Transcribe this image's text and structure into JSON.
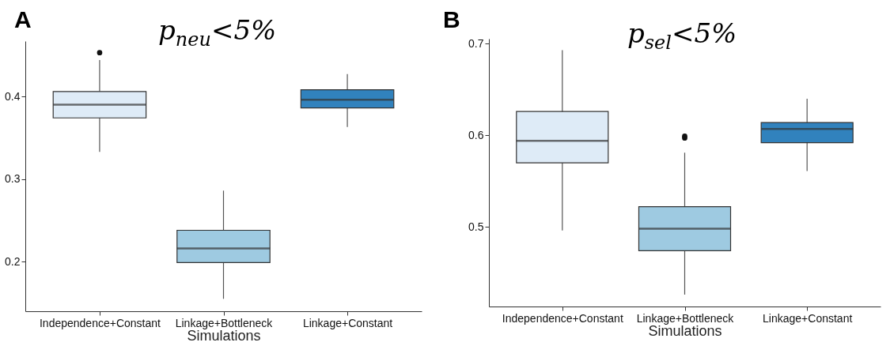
{
  "chart_data": [
    {
      "type": "box",
      "title": "p$_{neu}$<5%",
      "annotations": [
        "A"
      ],
      "xlabel": "Simulations",
      "categories": [
        "Independence+Constant",
        "Linkage+Bottleneck",
        "Linkage+Constant"
      ],
      "colors": [
        "#deebf7",
        "#9ecae1",
        "#3182bd"
      ],
      "ylim": [
        0.14,
        0.467
      ],
      "yticks": [
        0.2,
        0.3,
        0.4
      ],
      "boxes": [
        {
          "low": 0.333,
          "q1": 0.374,
          "median": 0.39,
          "q3": 0.406,
          "high": 0.444,
          "outliers": [
            0.453
          ]
        },
        {
          "low": 0.155,
          "q1": 0.199,
          "median": 0.216,
          "q3": 0.238,
          "high": 0.286
        },
        {
          "low": 0.363,
          "q1": 0.386,
          "median": 0.396,
          "q3": 0.408,
          "high": 0.427
        }
      ]
    },
    {
      "type": "box",
      "title": "p$_{sel}$<5%",
      "annotations": [
        "B"
      ],
      "xlabel": "Simulations",
      "categories": [
        "Independence+Constant",
        "Linkage+Bottleneck",
        "Linkage+Constant"
      ],
      "colors": [
        "#deebf7",
        "#9ecae1",
        "#3182bd"
      ],
      "ylim": [
        0.413,
        0.7055
      ],
      "yticks": [
        0.5,
        0.6,
        0.7
      ],
      "boxes": [
        {
          "low": 0.496,
          "q1": 0.57,
          "median": 0.594,
          "q3": 0.626,
          "high": 0.693
        },
        {
          "low": 0.426,
          "q1": 0.474,
          "median": 0.498,
          "q3": 0.522,
          "high": 0.581,
          "outliers": [
            0.597,
            0.599
          ]
        },
        {
          "low": 0.561,
          "q1": 0.592,
          "median": 0.607,
          "q3": 0.614,
          "high": 0.64
        }
      ]
    }
  ]
}
